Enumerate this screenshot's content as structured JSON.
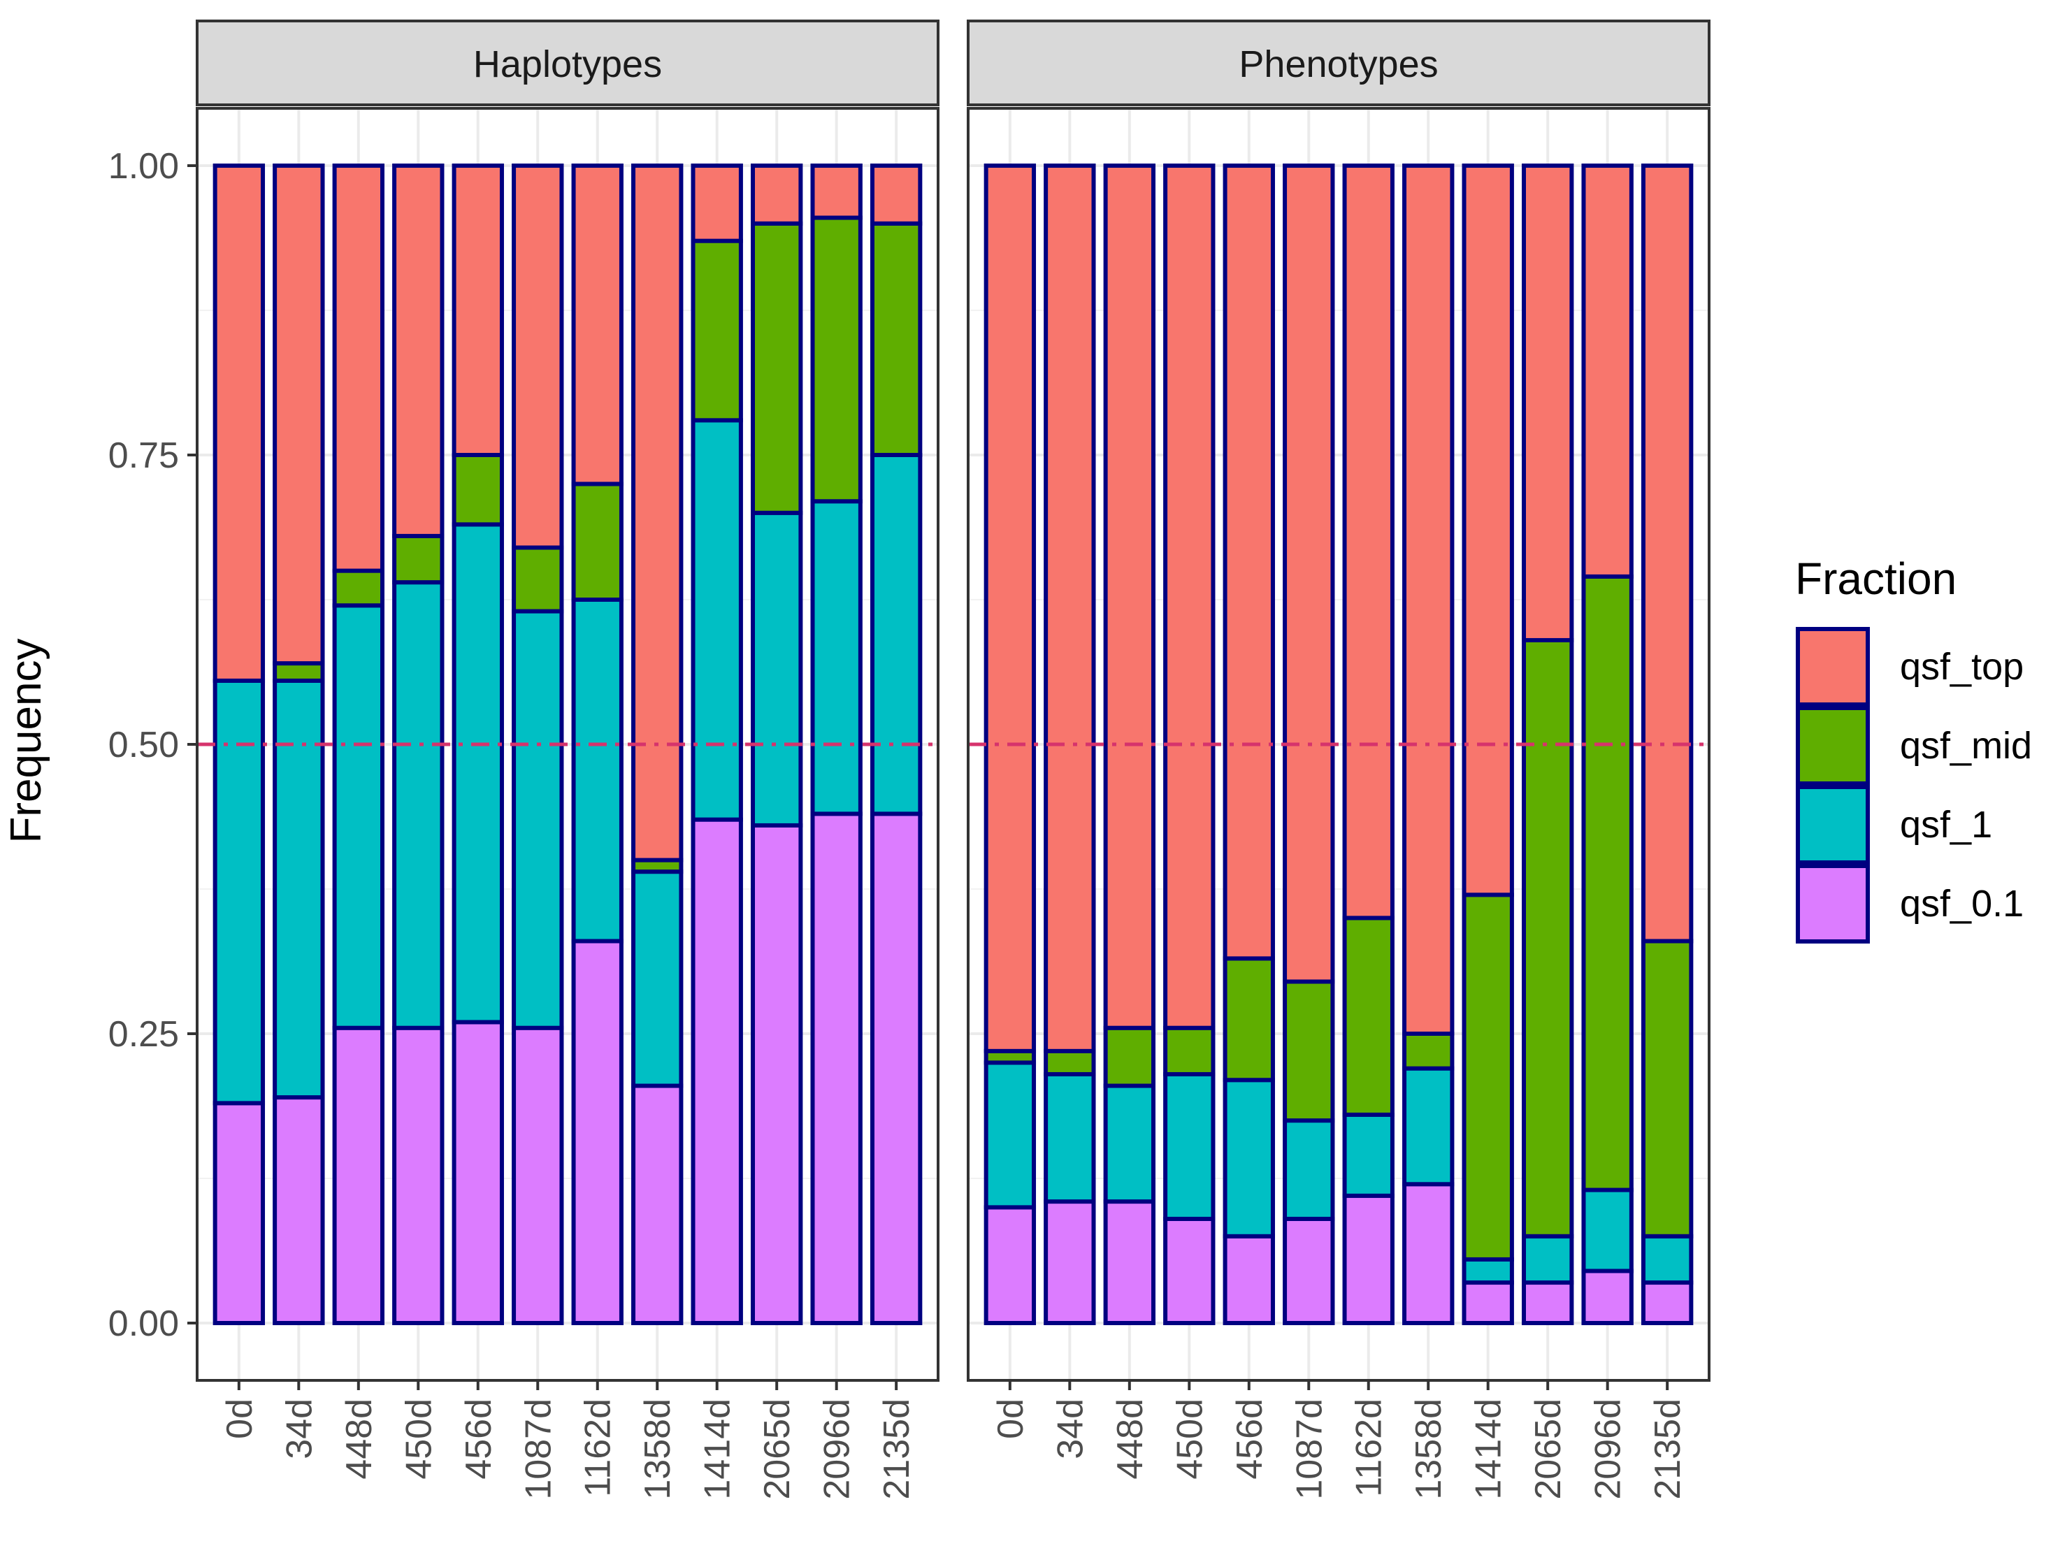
{
  "chart_data": {
    "type": "bar",
    "stacked": true,
    "ylabel": "Frequency",
    "xlabel": "",
    "ylim": [
      0,
      1
    ],
    "y_ticks": [
      "0.00",
      "0.25",
      "0.50",
      "0.75",
      "1.00"
    ],
    "reference_line": {
      "y": 0.5,
      "style": "dash-dot",
      "color": "#d6336c"
    },
    "categories": [
      "0d",
      "34d",
      "448d",
      "450d",
      "456d",
      "1087d",
      "1162d",
      "1358d",
      "1414d",
      "2065d",
      "2096d",
      "2135d"
    ],
    "legend": {
      "title": "Fraction",
      "placement": "right",
      "entries": [
        "qsf_top",
        "qsf_mid",
        "qsf_1",
        "qsf_0.1"
      ]
    },
    "colors": {
      "qsf_top": "#f8766d",
      "qsf_mid": "#5fae00",
      "qsf_1": "#00bfc4",
      "qsf_0.1": "#dc7cff",
      "bar_outline": "#000080"
    },
    "panels": [
      {
        "title": "Haplotypes",
        "series": [
          {
            "name": "qsf_0.1",
            "values": [
              0.19,
              0.195,
              0.255,
              0.255,
              0.26,
              0.255,
              0.33,
              0.205,
              0.435,
              0.43,
              0.44,
              0.44
            ]
          },
          {
            "name": "qsf_1",
            "values": [
              0.365,
              0.36,
              0.365,
              0.385,
              0.43,
              0.36,
              0.295,
              0.185,
              0.345,
              0.27,
              0.27,
              0.31
            ]
          },
          {
            "name": "qsf_mid",
            "values": [
              0.0,
              0.015,
              0.03,
              0.04,
              0.06,
              0.055,
              0.1,
              0.01,
              0.155,
              0.25,
              0.245,
              0.2
            ]
          },
          {
            "name": "qsf_top",
            "values": [
              0.445,
              0.43,
              0.35,
              0.32,
              0.25,
              0.33,
              0.275,
              0.6,
              0.065,
              0.05,
              0.045,
              0.05
            ]
          }
        ]
      },
      {
        "title": "Phenotypes",
        "series": [
          {
            "name": "qsf_0.1",
            "values": [
              0.1,
              0.105,
              0.105,
              0.09,
              0.075,
              0.09,
              0.11,
              0.12,
              0.035,
              0.035,
              0.045,
              0.035
            ]
          },
          {
            "name": "qsf_1",
            "values": [
              0.125,
              0.11,
              0.1,
              0.125,
              0.135,
              0.085,
              0.07,
              0.1,
              0.02,
              0.04,
              0.07,
              0.04
            ]
          },
          {
            "name": "qsf_mid",
            "values": [
              0.01,
              0.02,
              0.05,
              0.04,
              0.105,
              0.12,
              0.17,
              0.03,
              0.315,
              0.515,
              0.53,
              0.255
            ]
          },
          {
            "name": "qsf_top",
            "values": [
              0.765,
              0.765,
              0.745,
              0.745,
              0.685,
              0.705,
              0.65,
              0.75,
              0.63,
              0.41,
              0.355,
              0.67
            ]
          }
        ]
      }
    ]
  }
}
